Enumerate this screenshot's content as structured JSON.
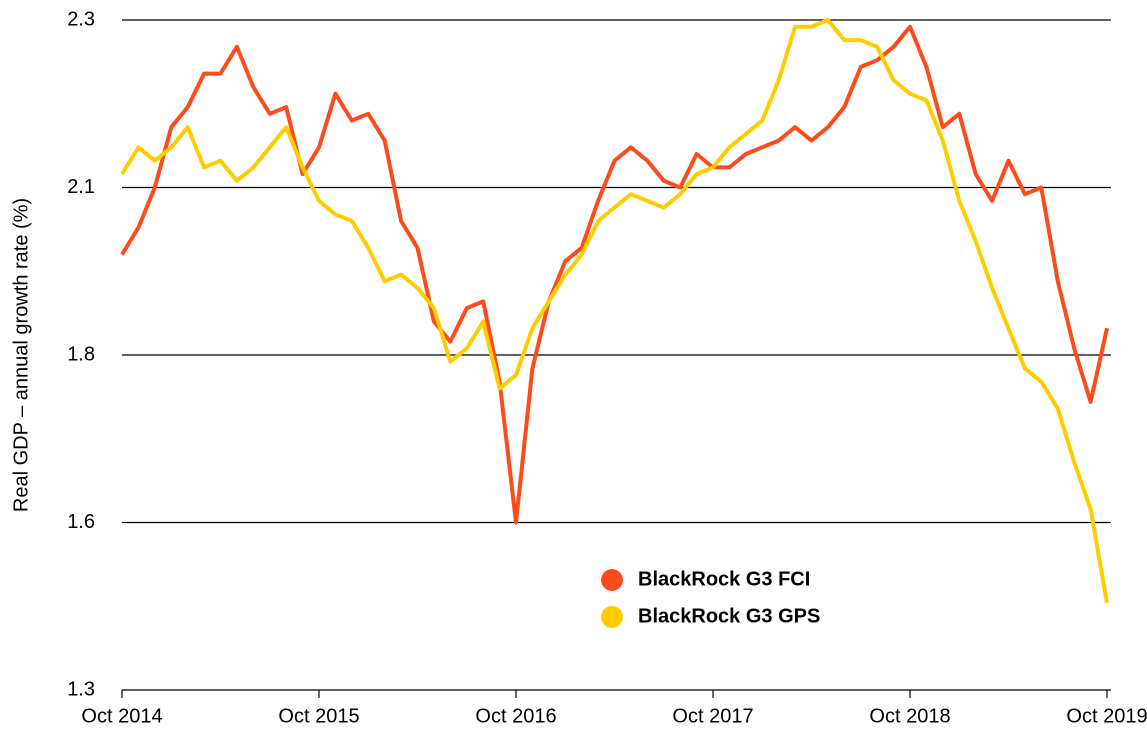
{
  "chart_data": {
    "type": "line",
    "ylabel": "Real GDP – annual growth rate (%)",
    "x": [
      "2014-10",
      "2014-11",
      "2014-12",
      "2015-01",
      "2015-02",
      "2015-03",
      "2015-04",
      "2015-05",
      "2015-06",
      "2015-07",
      "2015-08",
      "2015-09",
      "2015-10",
      "2015-11",
      "2015-12",
      "2016-01",
      "2016-02",
      "2016-03",
      "2016-04",
      "2016-05",
      "2016-06",
      "2016-07",
      "2016-08",
      "2016-09",
      "2016-10",
      "2016-11",
      "2016-12",
      "2017-01",
      "2017-02",
      "2017-03",
      "2017-04",
      "2017-05",
      "2017-06",
      "2017-07",
      "2017-08",
      "2017-09",
      "2017-10",
      "2017-11",
      "2017-12",
      "2018-01",
      "2018-02",
      "2018-03",
      "2018-04",
      "2018-05",
      "2018-06",
      "2018-07",
      "2018-08",
      "2018-09",
      "2018-10",
      "2018-11",
      "2018-12",
      "2019-01",
      "2019-02",
      "2019-03",
      "2019-04",
      "2019-05",
      "2019-06",
      "2019-07",
      "2019-08",
      "2019-09",
      "2019-10"
    ],
    "series": [
      {
        "name": "BlackRock G3 FCI",
        "color": "#fc4c1c",
        "values": [
          1.95,
          1.99,
          2.05,
          2.14,
          2.17,
          2.22,
          2.22,
          2.26,
          2.2,
          2.16,
          2.17,
          2.07,
          2.11,
          2.19,
          2.15,
          2.16,
          2.12,
          2.0,
          1.96,
          1.85,
          1.82,
          1.87,
          1.88,
          1.76,
          1.55,
          1.78,
          1.88,
          1.94,
          1.96,
          2.03,
          2.09,
          2.11,
          2.09,
          2.06,
          2.05,
          2.1,
          2.08,
          2.08,
          2.1,
          2.11,
          2.12,
          2.14,
          2.12,
          2.14,
          2.17,
          2.23,
          2.24,
          2.26,
          2.29,
          2.23,
          2.14,
          2.16,
          2.07,
          2.03,
          2.09,
          2.04,
          2.05,
          1.91,
          1.81,
          1.73,
          1.84
        ]
      },
      {
        "name": "BlackRock G3 GPS",
        "color": "#ffcc00",
        "values": [
          2.07,
          2.11,
          2.09,
          2.11,
          2.14,
          2.08,
          2.09,
          2.06,
          2.08,
          2.11,
          2.14,
          2.08,
          2.03,
          2.01,
          2.0,
          1.96,
          1.91,
          1.92,
          1.9,
          1.87,
          1.79,
          1.81,
          1.85,
          1.75,
          1.77,
          1.84,
          1.88,
          1.92,
          1.95,
          2.0,
          2.02,
          2.04,
          2.03,
          2.02,
          2.04,
          2.07,
          2.08,
          2.11,
          2.13,
          2.15,
          2.21,
          2.29,
          2.29,
          2.3,
          2.27,
          2.27,
          2.26,
          2.21,
          2.19,
          2.18,
          2.12,
          2.03,
          1.97,
          1.9,
          1.84,
          1.78,
          1.76,
          1.72,
          1.64,
          1.57,
          1.43
        ]
      }
    ],
    "ylim": [
      1.3,
      2.3
    ],
    "yticks": [
      2.3,
      {
        "value": 2.05,
        "label": "2.1"
      },
      1.8,
      {
        "value": 1.55,
        "label": "1.6"
      },
      1.3
    ],
    "xticks": [
      {
        "value": "2014-10",
        "label": "Oct 2014"
      },
      {
        "value": "2015-10",
        "label": "Oct 2015"
      },
      {
        "value": "2016-10",
        "label": "Oct 2016"
      },
      {
        "value": "2017-10",
        "label": "Oct 2017"
      },
      {
        "value": "2018-10",
        "label": "Oct 2018"
      },
      {
        "value": "2019-10",
        "label": "Oct 2019"
      }
    ],
    "grid": true
  }
}
